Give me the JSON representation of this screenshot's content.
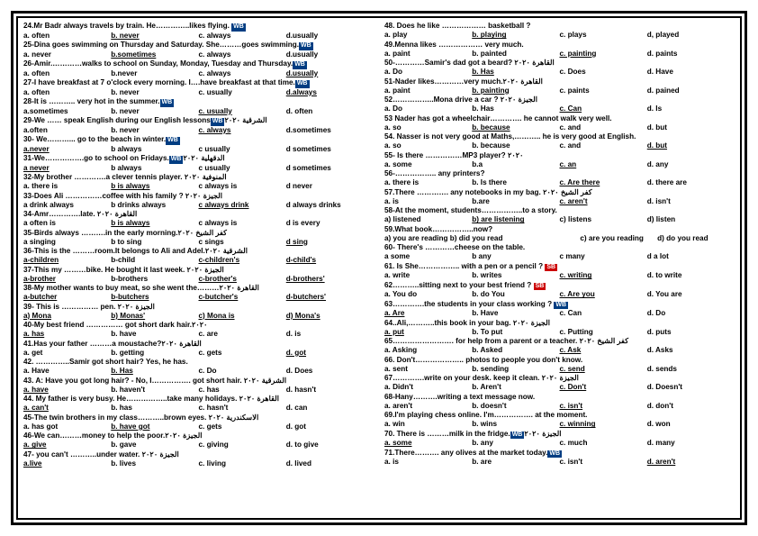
{
  "left": [
    {
      "type": "q",
      "text": "24.Mr Badr always travels by train. He…………..likes flying. ",
      "tag": "WB"
    },
    {
      "type": "opts",
      "items": [
        "a. often",
        "<u>b. never</u>",
        "c. always",
        "d.usually"
      ]
    },
    {
      "type": "q",
      "text": "25-Dina goes swimming on Thursday and Saturday. She………goes swimming.",
      "tag": "WB"
    },
    {
      "type": "opts",
      "items": [
        "a. never",
        "<u>b.sometimes</u>",
        "c. always",
        "d.usually"
      ]
    },
    {
      "type": "q",
      "text": "26-Amir.…………walks to school on Sunday, Monday, Tuesday and Thursday.",
      "tag": "WB"
    },
    {
      "type": "opts",
      "items": [
        "a. often",
        "b.never",
        "c. always",
        "<u>d.usually</u>"
      ]
    },
    {
      "type": "q",
      "text": "27-I have breakfast at 7 o'clock every morning. I….have breakfast at that time.",
      "tag": "WB"
    },
    {
      "type": "opts",
      "items": [
        "a. often",
        "b. never",
        "c. usually",
        "<u>d.always</u>"
      ]
    },
    {
      "type": "q",
      "text": "28-It is ……….. very hot in the summer.",
      "tag": "WB"
    },
    {
      "type": "opts",
      "items": [
        "a.sometimes",
        "b. never",
        "<u>c. usually</u>",
        "d. often"
      ]
    },
    {
      "type": "q",
      "text": "29-We …… speak English during our English lessons",
      "tag": "WB",
      "ar": "الشرقية ٢٠٢٠"
    },
    {
      "type": "opts",
      "items": [
        "a.often",
        "b. never",
        "<u>c. always</u>",
        "d.sometimes"
      ]
    },
    {
      "type": "q",
      "text": "30- We………... go to the beach in winter.",
      "tag": "WB"
    },
    {
      "type": "opts",
      "items": [
        "<u>a.never</u>",
        "b always",
        "c usually",
        "d sometimes"
      ]
    },
    {
      "type": "q",
      "text": "31-We…………….go to school on Fridays.",
      "tag": "WB",
      "ar": "الدقهلية ٢٠٢٠"
    },
    {
      "type": "opts",
      "items": [
        "<u>a never</u>",
        "b always",
        "c usually",
        "d sometimes"
      ]
    },
    {
      "type": "q",
      "text": "32-My brother ………….a clever tennis player. ",
      "ar": "المنوفية ٢٠٢٠"
    },
    {
      "type": "opts",
      "items": [
        "a. there is",
        "<u>b is always</u>",
        "c always is",
        "d never"
      ]
    },
    {
      "type": "q",
      "text": "33-Does Ali ……………coffee with his family ? ",
      "ar": "الجيزة ٢٠٢٠"
    },
    {
      "type": "opts",
      "items": [
        "a drink always",
        "b drinks always",
        "<u>c always drink</u>",
        "d always drinks"
      ]
    },
    {
      "type": "q",
      "text": "34-Amr………….late. ",
      "ar": "القاهرة ٢٠٢٠"
    },
    {
      "type": "opts",
      "items": [
        "a often is",
        "<u>b is always</u>",
        "c always is",
        "d is every"
      ]
    },
    {
      "type": "q",
      "text": "35-Birds always ……….in the early morning.",
      "ar": "كفر الشيخ ٢٠٢٠"
    },
    {
      "type": "opts",
      "items": [
        "a singing",
        "b to sing",
        "c sings",
        "<u>d sing</u>"
      ]
    },
    {
      "type": "q",
      "text": "36-This is the ………room.It belongs to Ali and Adel.",
      "ar": "الشرقية ٢٠٢٠"
    },
    {
      "type": "opts",
      "items": [
        "<u>a-children</u>",
        "b-child",
        "<u>c-children's</u>",
        "<u>d-child's</u>"
      ]
    },
    {
      "type": "q",
      "text": "37-This my ………bike. He bought it last week. ",
      "ar": "الجيزة ٢٠٢٠"
    },
    {
      "type": "opts",
      "items": [
        "<u>a-brother</u>",
        "b-brothers",
        "<u>c-brother's</u>",
        "<u>d-brothers'</u>"
      ]
    },
    {
      "type": "q",
      "text": "38-My mother wants to buy meat, so she went the………",
      "ar": "القاهرة ٢٠٢٠"
    },
    {
      "type": "opts",
      "items": [
        "<u>a-butcher</u>",
        "<u>b-butchers</u>",
        "<u>c-butcher's</u>",
        "<u>d-butchers'</u>"
      ]
    },
    {
      "type": "q",
      "text": "39- This is …………… pen. ",
      "ar": "الجيزة ٢٠٢٠"
    },
    {
      "type": "opts",
      "items": [
        "<u>a) Mona</u>",
        "<u>b) Monas'</u>",
        "<u>c) Mona is</u>",
        "<u>d) Mona's</u>"
      ]
    },
    {
      "type": "q",
      "text": "40-My best friend …………… got short dark hair.",
      "ar": "٢٠٢٠"
    },
    {
      "type": "opts",
      "items": [
        "<u>a. has</u>",
        "b. have",
        "c. are",
        "d. is"
      ]
    },
    {
      "type": "q",
      "text": "41.Has your father ………a moustache?",
      "ar": "القاهرة ٢٠٢٠"
    },
    {
      "type": "opts",
      "items": [
        "a. get",
        "b. getting",
        "c. gets",
        "<u>d. got</u>"
      ]
    },
    {
      "type": "q",
      "text": "42. …………..Samir got short hair? Yes, he has."
    },
    {
      "type": "opts",
      "items": [
        "a. Have",
        "<u>b. Has</u>",
        "c. Do",
        "d. Does"
      ]
    },
    {
      "type": "q",
      "text": "43. A: Have you got long hair? - No, I……………. got short hair. ",
      "ar": "الشرقية ٢٠٢٠"
    },
    {
      "type": "opts",
      "items": [
        "<u>a. have</u>",
        "b. haven't",
        "c. has",
        "d. hasn't"
      ]
    },
    {
      "type": "q",
      "text": "44. My father is very busy. He……………..take many holidays. ",
      "ar": "القاهرة ٢٠٢٠"
    },
    {
      "type": "opts",
      "items": [
        "<u>a. can't</u>",
        "b. has",
        "c. hasn't",
        "d. can"
      ]
    },
    {
      "type": "q",
      "text": "45-The twin brothers in my class………..brown eyes. ",
      "ar": "الاسكندرية ٢٠٢٠"
    },
    {
      "type": "opts",
      "items": [
        "a. has got",
        "<u>b. have got</u>",
        "c. gets",
        "d. got"
      ]
    },
    {
      "type": "q",
      "text": "46-We can………money to help the poor.",
      "ar": "الجيزة ٢٠٢٠"
    },
    {
      "type": "opts",
      "items": [
        "<u>a. give</u>",
        "b. gave",
        "c. giving",
        "d. to give"
      ]
    },
    {
      "type": "q",
      "text": "47- you can't ………..under water. ",
      "ar": "الجيزة ٢٠٢٠"
    },
    {
      "type": "opts",
      "items": [
        "<u>a.live</u>",
        "b. lives",
        "c. living",
        "d. lived"
      ]
    }
  ],
  "right": [
    {
      "type": "q",
      "text": "48. Does he like ……………… basketball ?"
    },
    {
      "type": "opts",
      "items": [
        "a. play",
        "<u>b. playing</u>",
        "c. plays",
        "d, played"
      ]
    },
    {
      "type": "q",
      "text": "49.Menna likes ……………… very much."
    },
    {
      "type": "opts",
      "items": [
        "a. paint",
        "b. painted",
        "<u>c. painting</u>",
        "d. paints"
      ]
    },
    {
      "type": "q",
      "text": "50-…………Samir's dad got a beard? ",
      "ar": "القاهرة ٢٠٢٠"
    },
    {
      "type": "opts",
      "items": [
        "a. Do",
        "<u>b. Has</u>",
        "c. Does",
        "d. Have"
      ]
    },
    {
      "type": "q",
      "text": "51-Nader likes…………very much.",
      "ar": "القاهرة ٢٠٢٠"
    },
    {
      "type": "opts",
      "items": [
        "a. paint",
        "<u>b. painting</u>",
        "c. paints",
        "d. pained"
      ]
    },
    {
      "type": "q",
      "text": "52……………..Mona drive a car ? ",
      "ar": "الجيزة ٢٠٢٠"
    },
    {
      "type": "opts",
      "items": [
        "a. Do",
        "b. Has",
        "<u>c. Can</u>",
        "d. Is"
      ]
    },
    {
      "type": "q",
      "text": "53 Nader has got a wheelchair…………. he cannot walk very well."
    },
    {
      "type": "opts",
      "items": [
        "a. so",
        "<u>b. because</u>",
        "c. and",
        "d. but"
      ]
    },
    {
      "type": "q",
      "text": "54. Nasser is not very good at Maths,……….. he is very good at English."
    },
    {
      "type": "opts",
      "items": [
        "a. so",
        "b. because",
        "c. and",
        "<u>d. but</u>"
      ]
    },
    {
      "type": "q",
      "text": "55- Is there ……………MP3 player? ",
      "ar": "٢٠٢٠"
    },
    {
      "type": "opts",
      "items": [
        "a. some",
        "b.a",
        "<u>c. an</u>",
        "d. any"
      ]
    },
    {
      "type": "q",
      "text": "56-…………….. any printers?"
    },
    {
      "type": "opts",
      "items": [
        "a. there is",
        "b. Is there",
        "<u>c. Are there</u>",
        "d. there are"
      ]
    },
    {
      "type": "q",
      "text": "57.There …………. any notebooks in my bag. ",
      "ar": "كفر الشيخ ٢٠٢٠"
    },
    {
      "type": "opts",
      "items": [
        "a. is",
        "b.are",
        "<u>c. aren't</u>",
        "d. isn't"
      ]
    },
    {
      "type": "q",
      "text": "58-At the moment, students……………..to a story."
    },
    {
      "type": "opts",
      "items": [
        "a) listened",
        "<u>b) are listening</u>",
        "c) listens",
        "d) listen"
      ]
    },
    {
      "type": "q",
      "text": "59.What book……………..now?"
    },
    {
      "type": "opts",
      "items": [
        "a) you are reading b) did you read",
        "",
        "c) are you reading",
        "d) do you read"
      ]
    },
    {
      "type": "q",
      "text": "60- There's …………cheese on the table."
    },
    {
      "type": "opts",
      "items": [
        "a some",
        "b any",
        "c many",
        "d a lot"
      ]
    },
    {
      "type": "q",
      "text": "61. Is She…………….. with a pen or a pencil ? ",
      "tag": "SB"
    },
    {
      "type": "opts",
      "items": [
        "a. write",
        "b. writes",
        "<u>c. writing</u>",
        "d. to write"
      ]
    },
    {
      "type": "q",
      "text": "62………..sitting next to your best friend ? ",
      "tag": "SB"
    },
    {
      "type": "opts",
      "items": [
        "a. You do",
        "b. do You",
        "<u>c. Are you</u>",
        "d. You are"
      ]
    },
    {
      "type": "q",
      "text": "63………….the students in your class working ? ",
      "tag": "WB"
    },
    {
      "type": "opts",
      "items": [
        "<u>a. Are</u>",
        "b. Have",
        "c. Can",
        "d. Do"
      ]
    },
    {
      "type": "q",
      "text": "64..Ali,………..this book in your bag. ",
      "ar": "الجيزة ٢٠٢٠"
    },
    {
      "type": "opts",
      "items": [
        "<u>a. put</u>",
        "b. To put",
        "c. Putting",
        "d. puts"
      ]
    },
    {
      "type": "q",
      "text": "65……………………. for help from a parent or a teacher. ",
      "ar": "كفر الشيخ ٢٠٢٠"
    },
    {
      "type": "opts",
      "items": [
        "a. Asking",
        "b. Asked",
        "<u>c. Ask</u>",
        "d. Asks"
      ]
    },
    {
      "type": "q",
      "text": "66. Don't……………….. photos to people you don't know."
    },
    {
      "type": "opts",
      "items": [
        "a. sent",
        "b. sending",
        "<u>c. send</u>",
        "d. sends"
      ]
    },
    {
      "type": "q",
      "text": "67………….write on your desk. keep it clean. ",
      "ar": "الجيزة ٢٠٢٠"
    },
    {
      "type": "opts",
      "items": [
        "a. Didn't",
        "b. Aren't",
        "<u>c. Don't</u>",
        "d. Doesn't"
      ]
    },
    {
      "type": "q",
      "text": "68-Hany……….writing a text message now."
    },
    {
      "type": "opts",
      "items": [
        "a. aren't",
        "b. doesn't",
        "<u>c. isn't</u>",
        "d. don't"
      ]
    },
    {
      "type": "q",
      "text": "69.I'm playing chess online. I'm……………. at the moment."
    },
    {
      "type": "opts",
      "items": [
        "a. win",
        "b. wins",
        "<u>c. winning</u>",
        "d. won"
      ]
    },
    {
      "type": "q",
      "text": "70. There is ………milk in the fridge.",
      "tag": "WB",
      "ar": "الجيزة ٢٠٢٠"
    },
    {
      "type": "opts",
      "items": [
        "<u>a. some</u>",
        "b. any",
        "c. much",
        "d. many"
      ]
    },
    {
      "type": "q",
      "text": "71.There………. any olives at the market today.",
      "tag": "WB"
    },
    {
      "type": "opts",
      "items": [
        "a. is",
        "b. are",
        "c. isn't",
        "<u>d. aren't</u>"
      ]
    }
  ]
}
